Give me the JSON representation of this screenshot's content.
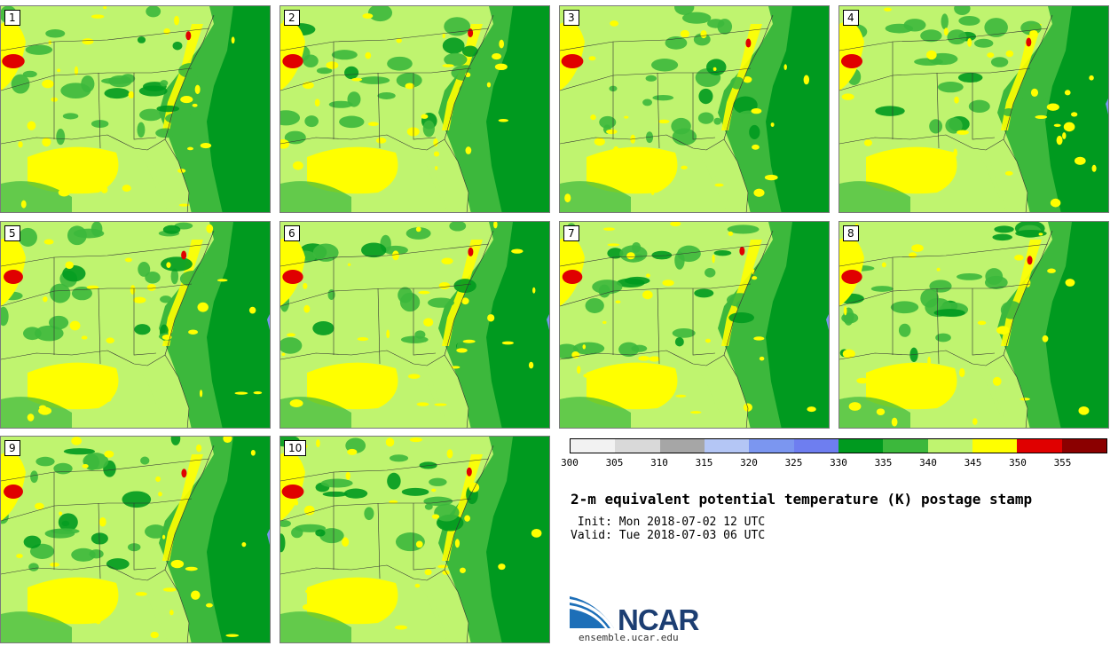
{
  "panels": [
    {
      "label": "1",
      "seed": 11
    },
    {
      "label": "2",
      "seed": 23
    },
    {
      "label": "3",
      "seed": 37
    },
    {
      "label": "4",
      "seed": 41
    },
    {
      "label": "5",
      "seed": 53
    },
    {
      "label": "6",
      "seed": 67
    },
    {
      "label": "7",
      "seed": 71
    },
    {
      "label": "8",
      "seed": 89
    },
    {
      "label": "9",
      "seed": 97
    },
    {
      "label": "10",
      "seed": 103
    }
  ],
  "colorbar": {
    "colors": [
      "#f2f2f2",
      "#d9d9d9",
      "#a6a6a6",
      "#b4c6f5",
      "#7b96f0",
      "#6e7ef0",
      "#009a1f",
      "#3cb83c",
      "#bff46f",
      "#ffff00",
      "#e00000",
      "#8b0000"
    ],
    "ticks": [
      "300",
      "305",
      "310",
      "315",
      "320",
      "325",
      "330",
      "335",
      "340",
      "345",
      "350",
      "355"
    ]
  },
  "title": "2-m equivalent potential temperature (K) postage stamp",
  "init": " Init: Mon 2018-07-02 12 UTC",
  "valid": "Valid: Tue 2018-07-03 06 UTC",
  "logo": {
    "word": "NCAR",
    "url": "ensemble.ucar.edu"
  }
}
